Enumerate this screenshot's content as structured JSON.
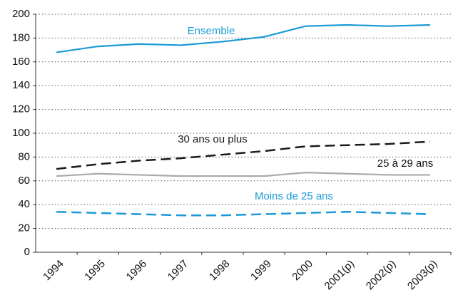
{
  "chart_data": {
    "type": "line",
    "categories": [
      "1994",
      "1995",
      "1996",
      "1997",
      "1998",
      "1999",
      "2000",
      "2001(p)",
      "2002(p)",
      "2003(p)"
    ],
    "series": [
      {
        "name": "Ensemble",
        "color": "#1a9ad6",
        "dashed": false,
        "values": [
          168,
          173,
          175,
          174,
          177,
          181,
          190,
          191,
          190,
          191
        ]
      },
      {
        "name": "30 ans ou plus",
        "color": "#1a1a1a",
        "dashed": true,
        "values": [
          70,
          74,
          77,
          79,
          82,
          85,
          89,
          90,
          91,
          93
        ]
      },
      {
        "name": "25 à 29 ans",
        "color": "#aaaaaa",
        "dashed": false,
        "values": [
          64,
          66,
          65,
          64,
          64,
          64,
          67,
          66,
          65,
          65
        ]
      },
      {
        "name": "Moins de 25 ans",
        "color": "#1a9ad6",
        "dashed": true,
        "values": [
          34,
          33,
          32,
          31,
          31,
          32,
          33,
          34,
          33,
          32
        ]
      }
    ],
    "ylim": [
      0,
      200
    ],
    "yticks": [
      0,
      20,
      40,
      60,
      80,
      100,
      120,
      140,
      160,
      180,
      200
    ],
    "grid": true
  }
}
